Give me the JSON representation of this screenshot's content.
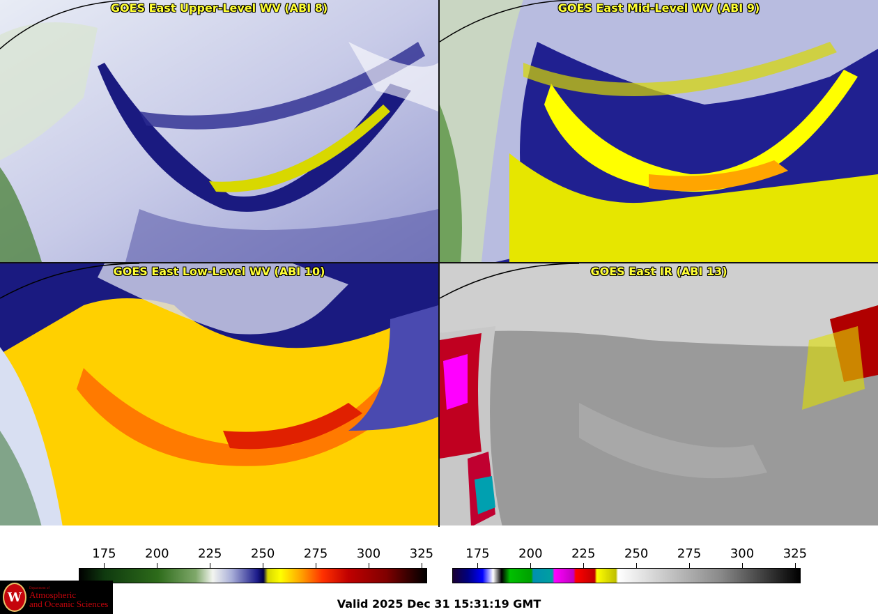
{
  "panels": [
    {
      "title": "GOES East Upper-Level WV (ABI 8)",
      "colormap": "wv"
    },
    {
      "title": "GOES East Mid-Level WV (ABI 9)",
      "colormap": "wv"
    },
    {
      "title": "GOES East Low-Level WV (ABI 10)",
      "colormap": "wv"
    },
    {
      "title": "GOES East IR (ABI 13)",
      "colormap": "ir"
    }
  ],
  "colorbars": [
    {
      "name": "wv",
      "range": [
        163,
        327
      ],
      "ticks": [
        "175",
        "200",
        "225",
        "250",
        "275",
        "300",
        "325"
      ],
      "stops": [
        {
          "v": 163,
          "c": "#000000"
        },
        {
          "v": 175,
          "c": "#0f3a0f"
        },
        {
          "v": 200,
          "c": "#2d6b1a"
        },
        {
          "v": 218,
          "c": "#7fa86a"
        },
        {
          "v": 226,
          "c": "#f3f5f0"
        },
        {
          "v": 235,
          "c": "#a8aed8"
        },
        {
          "v": 247,
          "c": "#1c1c8a"
        },
        {
          "v": 250,
          "c": "#000044"
        },
        {
          "v": 252,
          "c": "#d8d800"
        },
        {
          "v": 258,
          "c": "#ffff00"
        },
        {
          "v": 268,
          "c": "#ffa000"
        },
        {
          "v": 278,
          "c": "#ff3000"
        },
        {
          "v": 290,
          "c": "#c00000"
        },
        {
          "v": 308,
          "c": "#800000"
        },
        {
          "v": 318,
          "c": "#3a0000"
        },
        {
          "v": 327,
          "c": "#000000"
        }
      ]
    },
    {
      "name": "ir",
      "range": [
        163,
        327
      ],
      "ticks": [
        "175",
        "200",
        "225",
        "250",
        "275",
        "300",
        "325"
      ],
      "stops": [
        {
          "v": 163,
          "c": "#1a0033"
        },
        {
          "v": 170,
          "c": "#000080"
        },
        {
          "v": 177,
          "c": "#0000ff"
        },
        {
          "v": 182,
          "c": "#ffffff"
        },
        {
          "v": 186,
          "c": "#000000"
        },
        {
          "v": 190,
          "c": "#00c000"
        },
        {
          "v": 200,
          "c": "#00a000"
        },
        {
          "v": 201,
          "c": "#0090b0"
        },
        {
          "v": 210,
          "c": "#00a0a0"
        },
        {
          "v": 211,
          "c": "#ff00ff"
        },
        {
          "v": 220,
          "c": "#c000c0"
        },
        {
          "v": 221,
          "c": "#ff0000"
        },
        {
          "v": 230,
          "c": "#c00000"
        },
        {
          "v": 231,
          "c": "#ffff00"
        },
        {
          "v": 240,
          "c": "#c0c000"
        },
        {
          "v": 241,
          "c": "#ffffff"
        },
        {
          "v": 290,
          "c": "#888888"
        },
        {
          "v": 327,
          "c": "#000000"
        }
      ]
    }
  ],
  "valid_text": "Valid 2025 Dec 31 15:31:19 GMT",
  "logo": {
    "line0": "Department of",
    "line1": "Atmospheric",
    "line2": "and Oceanic Sciences",
    "seal": "W"
  }
}
